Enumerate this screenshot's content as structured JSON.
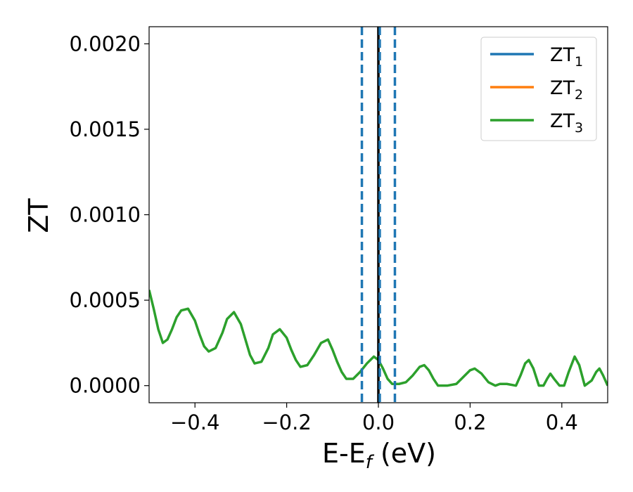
{
  "chart_data": {
    "type": "line",
    "xlabel": "E-E",
    "xlabel_sub": "f",
    "xlabel_unit": " (eV)",
    "ylabel": "ZT",
    "xlim": [
      -0.5,
      0.5
    ],
    "ylim": [
      -0.0001,
      0.0021
    ],
    "x_ticks": [
      -0.4,
      -0.2,
      0.0,
      0.2,
      0.4
    ],
    "x_tick_labels": [
      "−0.4",
      "−0.2",
      "0.0",
      "0.2",
      "0.4"
    ],
    "y_ticks": [
      0.0,
      0.0005,
      0.001,
      0.0015,
      0.002
    ],
    "y_tick_labels": [
      "0.0000",
      "0.0005",
      "0.0010",
      "0.0015",
      "0.0020"
    ],
    "grid": false,
    "legend_position": "top-right",
    "series": [
      {
        "name": "ZT",
        "name_sub": "1",
        "color": "#1f77b4",
        "visible": false
      },
      {
        "name": "ZT",
        "name_sub": "2",
        "color": "#ff7f0e",
        "visible": false
      },
      {
        "name": "ZT",
        "name_sub": "3",
        "color": "#2ca02c",
        "visible": true,
        "points": [
          [
            -0.5,
            0.00056
          ],
          [
            -0.49,
            0.00045
          ],
          [
            -0.48,
            0.00033
          ],
          [
            -0.47,
            0.00025
          ],
          [
            -0.46,
            0.00027
          ],
          [
            -0.45,
            0.00033
          ],
          [
            -0.44,
            0.0004
          ],
          [
            -0.43,
            0.00044
          ],
          [
            -0.415,
            0.00045
          ],
          [
            -0.4,
            0.00038
          ],
          [
            -0.39,
            0.0003
          ],
          [
            -0.38,
            0.00023
          ],
          [
            -0.37,
            0.0002
          ],
          [
            -0.355,
            0.00022
          ],
          [
            -0.34,
            0.00031
          ],
          [
            -0.33,
            0.00039
          ],
          [
            -0.315,
            0.00043
          ],
          [
            -0.3,
            0.00036
          ],
          [
            -0.29,
            0.00027
          ],
          [
            -0.28,
            0.00018
          ],
          [
            -0.27,
            0.00013
          ],
          [
            -0.255,
            0.00014
          ],
          [
            -0.24,
            0.00022
          ],
          [
            -0.23,
            0.0003
          ],
          [
            -0.215,
            0.00033
          ],
          [
            -0.2,
            0.00028
          ],
          [
            -0.19,
            0.00021
          ],
          [
            -0.18,
            0.00015
          ],
          [
            -0.17,
            0.00011
          ],
          [
            -0.155,
            0.00012
          ],
          [
            -0.14,
            0.00018
          ],
          [
            -0.125,
            0.00025
          ],
          [
            -0.11,
            0.00027
          ],
          [
            -0.1,
            0.00021
          ],
          [
            -0.09,
            0.00014
          ],
          [
            -0.08,
            8e-05
          ],
          [
            -0.07,
            4e-05
          ],
          [
            -0.055,
            4e-05
          ],
          [
            -0.04,
            8e-05
          ],
          [
            -0.025,
            0.00013
          ],
          [
            -0.01,
            0.00017
          ],
          [
            0.0,
            0.00015
          ],
          [
            0.01,
            0.0001
          ],
          [
            0.02,
            4e-05
          ],
          [
            0.03,
            1e-05
          ],
          [
            0.045,
            1e-05
          ],
          [
            0.06,
            2e-05
          ],
          [
            0.075,
            6e-05
          ],
          [
            0.09,
            0.00011
          ],
          [
            0.1,
            0.00012
          ],
          [
            0.11,
            9e-05
          ],
          [
            0.12,
            4e-05
          ],
          [
            0.13,
            0.0
          ],
          [
            0.15,
            0.0
          ],
          [
            0.17,
            1e-05
          ],
          [
            0.185,
            5e-05
          ],
          [
            0.2,
            9e-05
          ],
          [
            0.21,
            0.0001
          ],
          [
            0.225,
            7e-05
          ],
          [
            0.24,
            2e-05
          ],
          [
            0.255,
            0.0
          ],
          [
            0.265,
            1e-05
          ],
          [
            0.28,
            1e-05
          ],
          [
            0.3,
            0.0
          ],
          [
            0.31,
            6e-05
          ],
          [
            0.32,
            0.00013
          ],
          [
            0.328,
            0.00015
          ],
          [
            0.338,
            0.0001
          ],
          [
            0.35,
            0.0
          ],
          [
            0.36,
            0.0
          ],
          [
            0.368,
            4e-05
          ],
          [
            0.375,
            7e-05
          ],
          [
            0.383,
            4e-05
          ],
          [
            0.395,
            0.0
          ],
          [
            0.405,
            0.0
          ],
          [
            0.415,
            8e-05
          ],
          [
            0.428,
            0.00017
          ],
          [
            0.438,
            0.00012
          ],
          [
            0.45,
            0.0
          ],
          [
            0.465,
            3e-05
          ],
          [
            0.475,
            8e-05
          ],
          [
            0.482,
            0.0001
          ],
          [
            0.49,
            6e-05
          ],
          [
            0.5,
            0.0
          ]
        ]
      }
    ],
    "vertical_lines": [
      {
        "x": 0.0,
        "color": "#000000",
        "style": "solid"
      },
      {
        "x": -0.036,
        "color": "#1f77b4",
        "style": "dashed"
      },
      {
        "x": 0.036,
        "color": "#1f77b4",
        "style": "dashed"
      },
      {
        "x": 0.003,
        "color": "#1f77b4",
        "style": "dashed"
      }
    ]
  }
}
